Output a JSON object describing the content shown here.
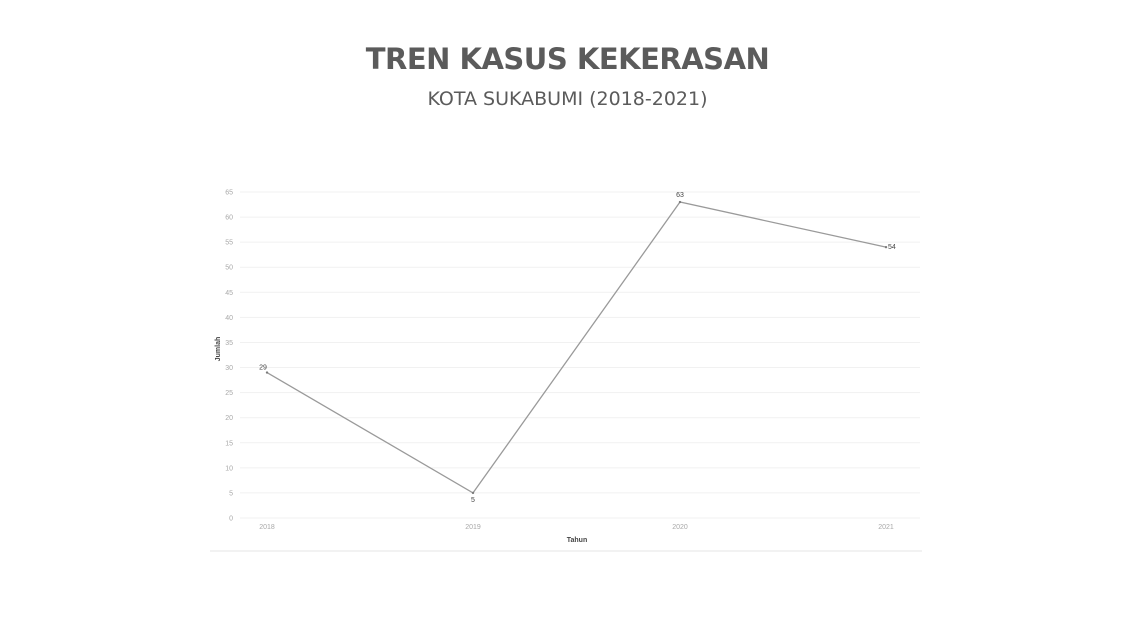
{
  "header": {
    "title": "TREN KASUS KEKERASAN",
    "subtitle": "KOTA SUKABUMI (2018-2021)"
  },
  "chart_data": {
    "type": "line",
    "title": "TREN KASUS KEKERASAN",
    "subtitle": "KOTA SUKABUMI (2018-2021)",
    "categories": [
      "2018",
      "2019",
      "2020",
      "2021"
    ],
    "series": [
      {
        "values": [
          29,
          5,
          63,
          54
        ]
      }
    ],
    "data_labels": [
      "29",
      "5",
      "63",
      "54"
    ],
    "xlabel": "Tahun",
    "ylabel": "Jumlah",
    "ylim": [
      0,
      65
    ],
    "yticks": [
      0,
      5,
      10,
      15,
      20,
      25,
      30,
      35,
      40,
      45,
      50,
      55,
      60,
      65
    ],
    "grid": true,
    "legend": "none",
    "colors": {
      "line": "#9a9a9a",
      "grid": "#f1f1f1",
      "tick": "#a8a8a8"
    }
  }
}
